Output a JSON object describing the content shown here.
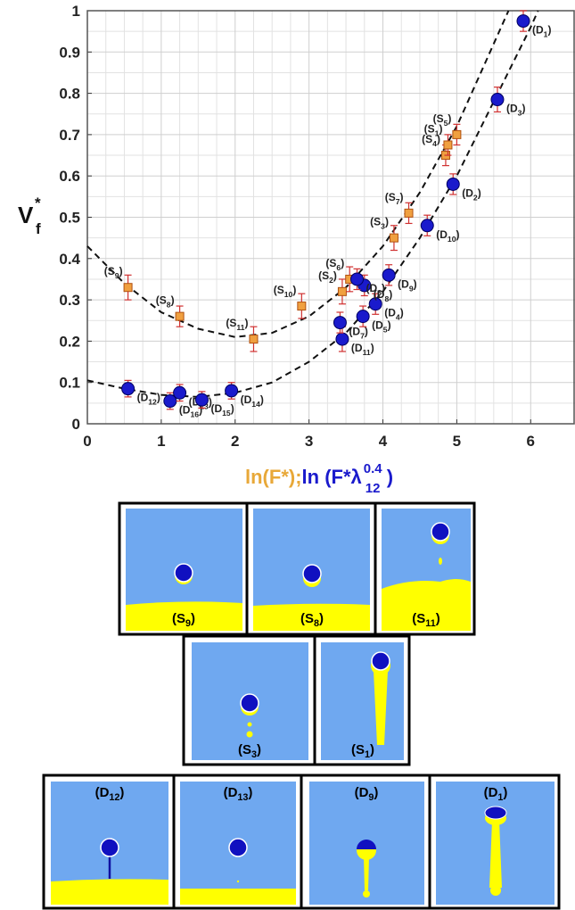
{
  "chart_data": {
    "type": "scatter",
    "xlim": [
      0,
      6.6
    ],
    "ylim": [
      0,
      1
    ],
    "xticks": [
      0,
      1,
      2,
      3,
      4,
      5,
      6
    ],
    "yticks": [
      0,
      0.1,
      0.2,
      0.3,
      0.4,
      0.5,
      0.6,
      0.7,
      0.8,
      0.9,
      1
    ],
    "grid": true,
    "x_label": [
      "ln(F*);",
      "ln (F*λ",
      "0.4",
      "12",
      ")"
    ],
    "x_label_colors": [
      "#e8a838",
      "#1a1acc"
    ],
    "y_label": [
      "V",
      "*",
      "f"
    ],
    "series": [
      {
        "color": "#f0a040",
        "marker": "square",
        "error_color": "#d03030",
        "x": [
          0.55,
          1.25,
          2.25,
          2.9,
          3.45,
          3.55,
          4.15,
          4.35,
          4.85,
          4.88,
          5.0
        ],
        "values": [
          0.33,
          0.26,
          0.205,
          0.285,
          0.32,
          0.35,
          0.45,
          0.51,
          0.65,
          0.675,
          0.7
        ],
        "errors": [
          0.03,
          0.025,
          0.03,
          0.03,
          0.03,
          0.03,
          0.03,
          0.025,
          0.025,
          0.025,
          0.025
        ],
        "labels": [
          [
            "(S",
            "9",
            ")"
          ],
          [
            "(S",
            "8",
            ")"
          ],
          [
            "(S",
            "11",
            ")"
          ],
          [
            "(S",
            "10",
            ")"
          ],
          [
            "(S",
            "2",
            ")"
          ],
          [
            "(S",
            "6",
            ")"
          ],
          [
            "(S",
            "3",
            ")"
          ],
          [
            "(S",
            "7",
            ")"
          ],
          [
            "(S",
            "4",
            ")"
          ],
          [
            "(S",
            "1",
            ")"
          ],
          [
            "(S",
            "5",
            ")"
          ]
        ]
      },
      {
        "color": "#1a1acc",
        "marker": "circle",
        "error_color": "#d03030",
        "x": [
          0.55,
          1.12,
          1.25,
          1.55,
          1.95,
          3.45,
          3.42,
          3.73,
          3.9,
          3.75,
          3.65,
          4.08,
          4.6,
          4.95,
          5.55,
          5.9
        ],
        "values": [
          0.085,
          0.055,
          0.075,
          0.058,
          0.08,
          0.205,
          0.245,
          0.26,
          0.29,
          0.335,
          0.35,
          0.36,
          0.48,
          0.58,
          0.785,
          0.975
        ],
        "errors": [
          0.02,
          0.02,
          0.02,
          0.02,
          0.02,
          0.03,
          0.025,
          0.025,
          0.025,
          0.025,
          0.025,
          0.025,
          0.025,
          0.025,
          0.03,
          0.025
        ],
        "labels": [
          [
            "(D",
            "12",
            ")"
          ],
          [
            "(D",
            "16",
            ")"
          ],
          [
            "(D",
            "13",
            ")"
          ],
          [
            "(D",
            "15",
            ")"
          ],
          [
            "(D",
            "14",
            ")"
          ],
          [
            "(D",
            "11",
            ")"
          ],
          [
            "(D",
            "7",
            ")"
          ],
          [
            "(D",
            "5",
            ")"
          ],
          [
            "(D",
            "4",
            ")"
          ],
          [
            "(D",
            "8",
            ")"
          ],
          [
            "(D",
            "6",
            ")"
          ],
          [
            "(D",
            "9",
            ")"
          ],
          [
            "(D",
            "10",
            ")"
          ],
          [
            "(D",
            "2",
            ")"
          ],
          [
            "(D",
            "3",
            ")"
          ],
          [
            "(D",
            "1",
            ")"
          ]
        ]
      }
    ],
    "fit_lines": [
      {
        "color": "#111",
        "x": [
          0,
          0.5,
          1,
          1.5,
          2,
          2.5,
          3,
          3.5,
          4,
          4.5,
          5,
          5.5,
          5.7
        ],
        "values": [
          0.43,
          0.34,
          0.27,
          0.23,
          0.21,
          0.22,
          0.26,
          0.33,
          0.43,
          0.56,
          0.72,
          0.92,
          1.0
        ]
      },
      {
        "color": "#111",
        "x": [
          0,
          0.5,
          1,
          1.5,
          2,
          2.5,
          3,
          3.5,
          4,
          4.5,
          5,
          5.5,
          6,
          6.1
        ],
        "values": [
          0.105,
          0.085,
          0.07,
          0.065,
          0.075,
          0.1,
          0.15,
          0.22,
          0.32,
          0.45,
          0.6,
          0.78,
          0.96,
          1.0
        ]
      }
    ]
  },
  "panels": [
    [
      [
        "(S",
        "9",
        ")"
      ],
      [
        "(S",
        "8",
        ")"
      ],
      [
        "(S",
        "11",
        ")"
      ]
    ],
    [
      [
        "(S",
        "3",
        ")"
      ],
      [
        "(S",
        "1",
        ")"
      ]
    ],
    [
      [
        "(D",
        "12",
        ")"
      ],
      [
        "(D",
        "13",
        ")"
      ],
      [
        "(D",
        "9",
        ")"
      ],
      [
        "(D",
        "1",
        ")"
      ]
    ]
  ]
}
